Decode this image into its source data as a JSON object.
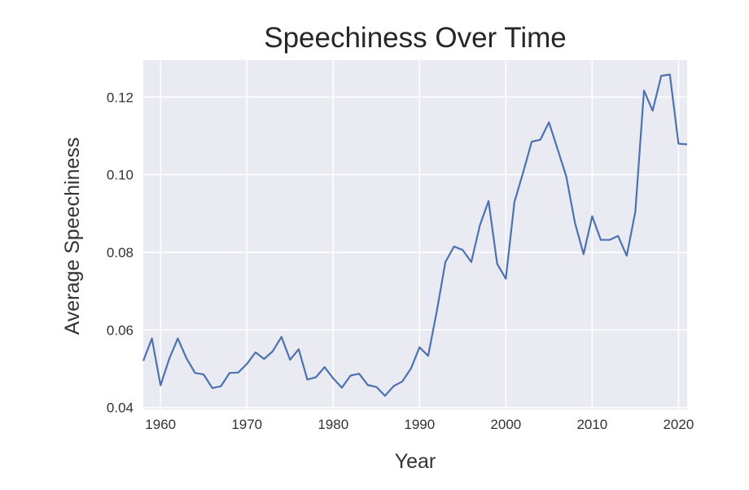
{
  "chart_data": {
    "type": "line",
    "title": "Speechiness Over Time",
    "xlabel": "Year",
    "ylabel": "Average Speechiness",
    "xlim": [
      1958,
      2021
    ],
    "ylim": [
      0.0395,
      0.1295
    ],
    "xticks": [
      1960,
      1970,
      1980,
      1990,
      2000,
      2010,
      2020
    ],
    "yticks": [
      0.04,
      0.06,
      0.08,
      0.1,
      0.12
    ],
    "ytick_labels": [
      "0.04",
      "0.06",
      "0.08",
      "0.10",
      "0.12"
    ],
    "grid": true,
    "colors": {
      "line": "#4c72b0",
      "background": "#eaeaf2",
      "grid": "#ffffff"
    },
    "series": [
      {
        "x": [
          1958,
          1959,
          1960,
          1961,
          1962,
          1963,
          1964,
          1965,
          1966,
          1967,
          1968,
          1969,
          1970,
          1971,
          1972,
          1973,
          1974,
          1975,
          1976,
          1977,
          1978,
          1979,
          1980,
          1981,
          1982,
          1983,
          1984,
          1985,
          1986,
          1987,
          1988,
          1989,
          1990,
          1991,
          1992,
          1993,
          1994,
          1995,
          1996,
          1997,
          1998,
          1999,
          2000,
          2001,
          2002,
          2003,
          2004,
          2005,
          2006,
          2007,
          2008,
          2009,
          2010,
          2011,
          2012,
          2013,
          2014,
          2015,
          2016,
          2017,
          2018,
          2019,
          2020,
          2021
        ],
        "values": [
          0.052,
          0.0578,
          0.0457,
          0.0525,
          0.0578,
          0.0527,
          0.0489,
          0.0485,
          0.045,
          0.0455,
          0.0489,
          0.049,
          0.0512,
          0.0542,
          0.0525,
          0.0545,
          0.0582,
          0.0523,
          0.055,
          0.0472,
          0.0478,
          0.0504,
          0.0475,
          0.0451,
          0.0482,
          0.0487,
          0.0458,
          0.0453,
          0.043,
          0.0455,
          0.0467,
          0.05,
          0.0555,
          0.0533,
          0.0648,
          0.0775,
          0.0815,
          0.0806,
          0.0775,
          0.087,
          0.0932,
          0.077,
          0.0732,
          0.093,
          0.1005,
          0.1085,
          0.109,
          0.1135,
          0.1065,
          0.0995,
          0.0876,
          0.0795,
          0.0893,
          0.0832,
          0.0832,
          0.0842,
          0.0791,
          0.0905,
          0.1217,
          0.1165,
          0.1255,
          0.1258,
          0.108,
          0.1078
        ]
      }
    ]
  }
}
